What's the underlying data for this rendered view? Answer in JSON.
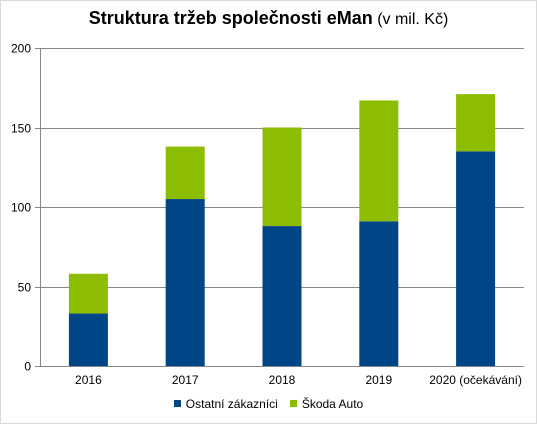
{
  "chart_data": {
    "type": "bar",
    "stacked": true,
    "title": "Struktura tržeb společnosti eMan",
    "title_unit": "(v mil. Kč)",
    "categories": [
      "2016",
      "2017",
      "2018",
      "2019",
      "2020 (očekávání)"
    ],
    "series": [
      {
        "name": "Ostatní zákazníci",
        "color": "#004586",
        "values": [
          33,
          105,
          88,
          91,
          135
        ]
      },
      {
        "name": "Škoda Auto",
        "color": "#8cbd00",
        "values": [
          25,
          33,
          62,
          76,
          36
        ]
      }
    ],
    "ylim": [
      0,
      200
    ],
    "yticks": [
      0,
      50,
      100,
      150,
      200
    ],
    "grid": true,
    "legend_position": "bottom"
  }
}
